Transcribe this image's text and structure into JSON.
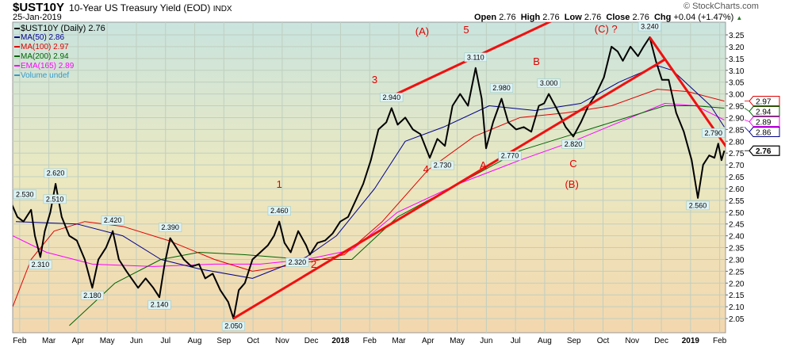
{
  "header": {
    "symbol": "$UST10Y",
    "description": "10-Year US Treasury Yield (EOD)",
    "exchange": "INDX",
    "date": "25-Jan-2019",
    "open_label": "Open",
    "open": "2.76",
    "high_label": "High",
    "high": "2.76",
    "low_label": "Low",
    "low": "2.76",
    "close_label": "Close",
    "close": "2.76",
    "chg_label": "Chg",
    "chg": "+0.04 (+1.47%)",
    "brand": "© StockCharts.com"
  },
  "legend": [
    {
      "text": "$UST10Y (Daily) 2.76",
      "color": "#000000"
    },
    {
      "text": "MA(50) 2.86",
      "color": "#00008b"
    },
    {
      "text": "MA(100) 2.97",
      "color": "#e00000"
    },
    {
      "text": "MA(200) 2.94",
      "color": "#006400"
    },
    {
      "text": "EMA(165) 2.89",
      "color": "#ff00ff"
    },
    {
      "text": "Volume undef",
      "color": "#3399cc"
    }
  ],
  "chart_data": {
    "type": "line",
    "title": "$UST10Y 10-Year US Treasury Yield (EOD)",
    "x_unit": "months since Feb 2017",
    "xlim": [
      -0.24,
      24.2
    ],
    "ylim": [
      2.0,
      3.32
    ],
    "xticks": [
      {
        "x": 0,
        "label": "Feb"
      },
      {
        "x": 1,
        "label": "Mar"
      },
      {
        "x": 2,
        "label": "Apr"
      },
      {
        "x": 3,
        "label": "May"
      },
      {
        "x": 4,
        "label": "Jun"
      },
      {
        "x": 5,
        "label": "Jul"
      },
      {
        "x": 6,
        "label": "Aug"
      },
      {
        "x": 7,
        "label": "Sep"
      },
      {
        "x": 8,
        "label": "Oct"
      },
      {
        "x": 9,
        "label": "Nov"
      },
      {
        "x": 10,
        "label": "Dec"
      },
      {
        "x": 11,
        "label": "2018",
        "bold": true
      },
      {
        "x": 12,
        "label": "Feb"
      },
      {
        "x": 13,
        "label": "Mar"
      },
      {
        "x": 14,
        "label": "Apr"
      },
      {
        "x": 15,
        "label": "May"
      },
      {
        "x": 16,
        "label": "Jun"
      },
      {
        "x": 17,
        "label": "Jul"
      },
      {
        "x": 18,
        "label": "Aug"
      },
      {
        "x": 19,
        "label": "Sep"
      },
      {
        "x": 20,
        "label": "Oct"
      },
      {
        "x": 21,
        "label": "Nov"
      },
      {
        "x": 22,
        "label": "Dec"
      },
      {
        "x": 23,
        "label": "2019",
        "bold": true
      },
      {
        "x": 24,
        "label": "Feb"
      }
    ],
    "yticks": [
      "3.25",
      "3.20",
      "3.15",
      "3.10",
      "3.05",
      "3.00",
      "2.95",
      "2.90",
      "2.85",
      "2.80",
      "2.75",
      "2.70",
      "2.65",
      "2.60",
      "2.55",
      "2.50",
      "2.45",
      "2.40",
      "2.35",
      "2.30",
      "2.25",
      "2.20",
      "2.15",
      "2.10",
      "2.05"
    ],
    "series": [
      {
        "name": "$UST10Y",
        "color": "#000000",
        "width": 2,
        "points": [
          [
            -0.26,
            2.53
          ],
          [
            -0.08,
            2.48
          ],
          [
            0.13,
            2.46
          ],
          [
            0.39,
            2.51
          ],
          [
            0.52,
            2.4
          ],
          [
            0.71,
            2.31
          ],
          [
            0.86,
            2.42
          ],
          [
            1.05,
            2.5
          ],
          [
            1.23,
            2.62
          ],
          [
            1.44,
            2.48
          ],
          [
            1.7,
            2.4
          ],
          [
            1.96,
            2.38
          ],
          [
            2.23,
            2.3
          ],
          [
            2.49,
            2.18
          ],
          [
            2.7,
            2.3
          ],
          [
            2.96,
            2.35
          ],
          [
            3.19,
            2.42
          ],
          [
            3.4,
            2.3
          ],
          [
            3.66,
            2.25
          ],
          [
            4.06,
            2.18
          ],
          [
            4.32,
            2.22
          ],
          [
            4.58,
            2.18
          ],
          [
            4.79,
            2.14
          ],
          [
            4.97,
            2.28
          ],
          [
            5.16,
            2.39
          ],
          [
            5.42,
            2.34
          ],
          [
            5.63,
            2.3
          ],
          [
            5.89,
            2.27
          ],
          [
            6.15,
            2.28
          ],
          [
            6.36,
            2.22
          ],
          [
            6.62,
            2.24
          ],
          [
            6.88,
            2.17
          ],
          [
            7.15,
            2.12
          ],
          [
            7.33,
            2.05
          ],
          [
            7.51,
            2.17
          ],
          [
            7.72,
            2.2
          ],
          [
            7.98,
            2.3
          ],
          [
            8.25,
            2.33
          ],
          [
            8.51,
            2.36
          ],
          [
            8.72,
            2.4
          ],
          [
            8.9,
            2.46
          ],
          [
            9.08,
            2.37
          ],
          [
            9.29,
            2.33
          ],
          [
            9.55,
            2.42
          ],
          [
            9.82,
            2.36
          ],
          [
            9.95,
            2.32
          ],
          [
            10.21,
            2.37
          ],
          [
            10.47,
            2.38
          ],
          [
            10.73,
            2.41
          ],
          [
            10.99,
            2.46
          ],
          [
            11.26,
            2.48
          ],
          [
            11.52,
            2.55
          ],
          [
            11.78,
            2.62
          ],
          [
            12.04,
            2.72
          ],
          [
            12.3,
            2.85
          ],
          [
            12.57,
            2.88
          ],
          [
            12.75,
            2.94
          ],
          [
            12.96,
            2.87
          ],
          [
            13.22,
            2.9
          ],
          [
            13.48,
            2.85
          ],
          [
            13.74,
            2.83
          ],
          [
            14.06,
            2.73
          ],
          [
            14.32,
            2.81
          ],
          [
            14.58,
            2.78
          ],
          [
            14.84,
            2.95
          ],
          [
            15.1,
            3.0
          ],
          [
            15.37,
            2.95
          ],
          [
            15.63,
            3.11
          ],
          [
            15.84,
            2.98
          ],
          [
            15.99,
            2.77
          ],
          [
            16.23,
            2.88
          ],
          [
            16.52,
            2.98
          ],
          [
            16.75,
            2.88
          ],
          [
            17.02,
            2.85
          ],
          [
            17.28,
            2.86
          ],
          [
            17.54,
            2.84
          ],
          [
            17.8,
            2.95
          ],
          [
            17.98,
            2.96
          ],
          [
            18.14,
            3.0
          ],
          [
            18.4,
            2.94
          ],
          [
            18.72,
            2.86
          ],
          [
            18.98,
            2.82
          ],
          [
            19.24,
            2.88
          ],
          [
            19.5,
            2.95
          ],
          [
            19.76,
            3.0
          ],
          [
            20.03,
            3.07
          ],
          [
            20.29,
            3.2
          ],
          [
            20.5,
            3.18
          ],
          [
            20.68,
            3.14
          ],
          [
            20.94,
            3.2
          ],
          [
            21.2,
            3.16
          ],
          [
            21.39,
            3.2
          ],
          [
            21.6,
            3.24
          ],
          [
            21.81,
            3.14
          ],
          [
            22.02,
            3.06
          ],
          [
            22.25,
            3.06
          ],
          [
            22.51,
            2.92
          ],
          [
            22.77,
            2.84
          ],
          [
            23.04,
            2.72
          ],
          [
            23.25,
            2.56
          ],
          [
            23.43,
            2.7
          ],
          [
            23.64,
            2.74
          ],
          [
            23.82,
            2.73
          ],
          [
            23.95,
            2.79
          ],
          [
            24.06,
            2.72
          ],
          [
            24.16,
            2.76
          ]
        ]
      },
      {
        "name": "MA(50)",
        "color": "#00008b",
        "width": 1,
        "points": [
          [
            -0.13,
            2.46
          ],
          [
            1.96,
            2.45
          ],
          [
            3.53,
            2.4
          ],
          [
            4.84,
            2.3
          ],
          [
            6.15,
            2.26
          ],
          [
            7.98,
            2.22
          ],
          [
            9.82,
            2.31
          ],
          [
            10.86,
            2.4
          ],
          [
            12.17,
            2.6
          ],
          [
            13.22,
            2.8
          ],
          [
            14.53,
            2.86
          ],
          [
            16.1,
            2.95
          ],
          [
            17.67,
            2.93
          ],
          [
            19.24,
            2.96
          ],
          [
            20.55,
            3.05
          ],
          [
            21.86,
            3.12
          ],
          [
            22.38,
            3.1
          ],
          [
            23.69,
            2.95
          ],
          [
            24.16,
            2.86
          ]
        ]
      },
      {
        "name": "MA(100)",
        "color": "#e00000",
        "width": 1,
        "points": [
          [
            -0.24,
            2.1
          ],
          [
            0.39,
            2.3
          ],
          [
            1.18,
            2.42
          ],
          [
            2.23,
            2.46
          ],
          [
            3.53,
            2.44
          ],
          [
            5.1,
            2.38
          ],
          [
            6.68,
            2.3
          ],
          [
            7.98,
            2.25
          ],
          [
            9.55,
            2.28
          ],
          [
            11.13,
            2.32
          ],
          [
            12.43,
            2.46
          ],
          [
            14.01,
            2.68
          ],
          [
            15.58,
            2.82
          ],
          [
            17.15,
            2.9
          ],
          [
            18.72,
            2.92
          ],
          [
            20.29,
            2.95
          ],
          [
            21.86,
            3.02
          ],
          [
            22.91,
            3.01
          ],
          [
            24.16,
            2.97
          ]
        ]
      },
      {
        "name": "MA(200)",
        "color": "#006400",
        "width": 1,
        "points": [
          [
            1.7,
            2.02
          ],
          [
            3.27,
            2.2
          ],
          [
            4.84,
            2.3
          ],
          [
            6.15,
            2.33
          ],
          [
            7.72,
            2.32
          ],
          [
            9.82,
            2.3
          ],
          [
            11.39,
            2.3
          ],
          [
            12.96,
            2.48
          ],
          [
            15.05,
            2.62
          ],
          [
            17.15,
            2.76
          ],
          [
            18.72,
            2.82
          ],
          [
            20.29,
            2.88
          ],
          [
            22.12,
            2.95
          ],
          [
            23.17,
            2.95
          ],
          [
            24.16,
            2.94
          ]
        ]
      },
      {
        "name": "EMA(165)",
        "color": "#ff00ff",
        "width": 1,
        "points": [
          [
            -0.24,
            2.4
          ],
          [
            0.92,
            2.33
          ],
          [
            2.49,
            2.28
          ],
          [
            4.58,
            2.27
          ],
          [
            6.68,
            2.28
          ],
          [
            8.25,
            2.28
          ],
          [
            9.82,
            2.3
          ],
          [
            11.39,
            2.34
          ],
          [
            12.96,
            2.5
          ],
          [
            15.05,
            2.62
          ],
          [
            17.15,
            2.72
          ],
          [
            18.98,
            2.8
          ],
          [
            20.55,
            2.88
          ],
          [
            22.12,
            2.96
          ],
          [
            23.17,
            2.95
          ],
          [
            24.16,
            2.89
          ]
        ]
      }
    ],
    "value_tags": [
      {
        "text": "2.97",
        "value": 2.97,
        "color": "#e00000"
      },
      {
        "text": "2.94",
        "value": 2.94,
        "color": "#006400"
      },
      {
        "text": "2.89",
        "value": 2.89,
        "color": "#ff00ff"
      },
      {
        "text": "2.86",
        "value": 2.86,
        "color": "#00008b"
      },
      {
        "text": "2.76",
        "value": 2.76,
        "color": "#000000",
        "bold": true
      }
    ],
    "callouts": [
      {
        "x": -0.26,
        "y": 2.53,
        "text": "2.530",
        "kind": "peak"
      },
      {
        "x": 0.39,
        "y": 2.51,
        "text": "2.510",
        "kind": "peak"
      },
      {
        "x": 0.71,
        "y": 2.31,
        "text": "2.310",
        "kind": "trough"
      },
      {
        "x": 1.23,
        "y": 2.62,
        "text": "2.620",
        "kind": "peak"
      },
      {
        "x": 2.49,
        "y": 2.18,
        "text": "2.180",
        "kind": "trough"
      },
      {
        "x": 3.19,
        "y": 2.42,
        "text": "2.420",
        "kind": "peak"
      },
      {
        "x": 4.79,
        "y": 2.14,
        "text": "2.140",
        "kind": "trough"
      },
      {
        "x": 5.16,
        "y": 2.39,
        "text": "2.390",
        "kind": "peak"
      },
      {
        "x": 7.33,
        "y": 2.05,
        "text": "2.050",
        "kind": "trough"
      },
      {
        "x": 8.9,
        "y": 2.46,
        "text": "2.460",
        "kind": "peak"
      },
      {
        "x": 9.95,
        "y": 2.32,
        "text": "2.320",
        "kind": "trough"
      },
      {
        "x": 12.75,
        "y": 2.94,
        "text": "2.940",
        "kind": "peak"
      },
      {
        "x": 14.06,
        "y": 2.73,
        "text": "2.730",
        "kind": "trough"
      },
      {
        "x": 15.63,
        "y": 3.11,
        "text": "3.110",
        "kind": "peak"
      },
      {
        "x": 15.99,
        "y": 2.77,
        "text": "2.770",
        "kind": "trough"
      },
      {
        "x": 16.52,
        "y": 2.98,
        "text": "2.980",
        "kind": "peak"
      },
      {
        "x": 18.14,
        "y": 3.0,
        "text": "3.000",
        "kind": "peak"
      },
      {
        "x": 18.98,
        "y": 2.82,
        "text": "2.820",
        "kind": "trough"
      },
      {
        "x": 21.6,
        "y": 3.24,
        "text": "3.240",
        "kind": "peak"
      },
      {
        "x": 23.25,
        "y": 2.56,
        "text": "2.560",
        "kind": "trough"
      },
      {
        "x": 23.95,
        "y": 2.79,
        "text": "2.790",
        "kind": "peak"
      }
    ],
    "trendlines": [
      {
        "from": [
          7.33,
          2.05
        ],
        "to": [
          22.12,
          3.146
        ]
      },
      {
        "from": [
          12.83,
          2.995
        ],
        "to": [
          19.76,
          3.397
        ]
      },
      {
        "from": [
          21.6,
          3.24
        ],
        "to": [
          24.22,
          2.777
        ]
      }
    ],
    "annotations": [
      {
        "text": "1",
        "x": 8.9,
        "y": 2.603
      },
      {
        "text": "2",
        "x": 10.08,
        "y": 2.265
      },
      {
        "text": "3",
        "x": 12.17,
        "y": 3.046
      },
      {
        "text": "4",
        "x": 13.93,
        "y": 2.667
      },
      {
        "text": "5",
        "x": 15.31,
        "y": 3.257
      },
      {
        "text": "(A)",
        "x": 13.8,
        "y": 3.25
      },
      {
        "text": "A",
        "x": 15.89,
        "y": 2.684
      },
      {
        "text": "B",
        "x": 17.72,
        "y": 3.123
      },
      {
        "text": "C",
        "x": 18.98,
        "y": 2.69
      },
      {
        "text": "(B)",
        "x": 18.93,
        "y": 2.603
      },
      {
        "text": "(C) ?",
        "x": 20.1,
        "y": 3.26
      }
    ]
  }
}
